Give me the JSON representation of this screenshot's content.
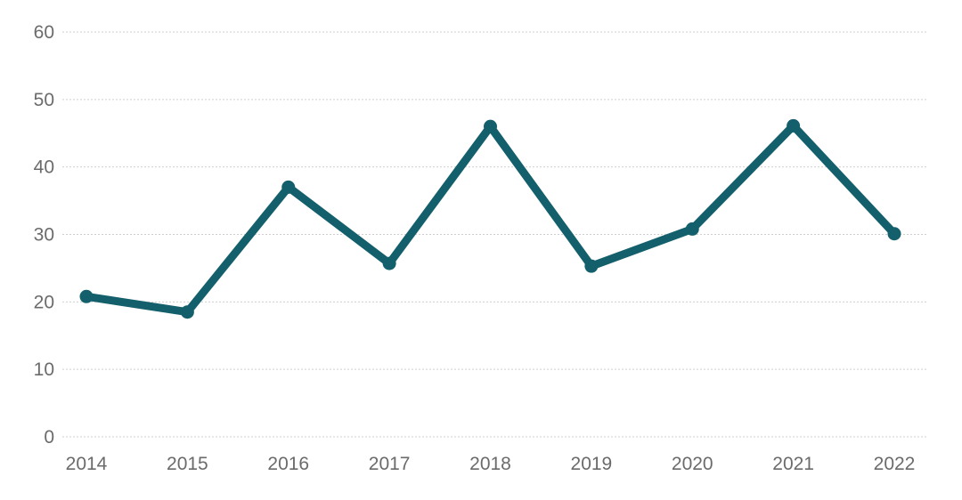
{
  "chart_data": {
    "type": "line",
    "title": "",
    "xlabel": "",
    "ylabel": "",
    "categories": [
      "2014",
      "2015",
      "2016",
      "2017",
      "2018",
      "2019",
      "2020",
      "2021",
      "2022"
    ],
    "series": [
      {
        "values": [
          20.8,
          18.5,
          37.0,
          25.7,
          46.0,
          25.3,
          30.8,
          46.1,
          30.1
        ],
        "color": "#135f6b"
      }
    ],
    "ylim": [
      0,
      60
    ],
    "yticks": [
      0,
      10,
      20,
      30,
      40,
      50,
      60
    ],
    "ytick_labels": [
      "0",
      "10",
      "20",
      "30",
      "40",
      "50",
      "60"
    ],
    "grid": true,
    "grid_style": "dotted",
    "legend": "none",
    "markers": "circle"
  }
}
